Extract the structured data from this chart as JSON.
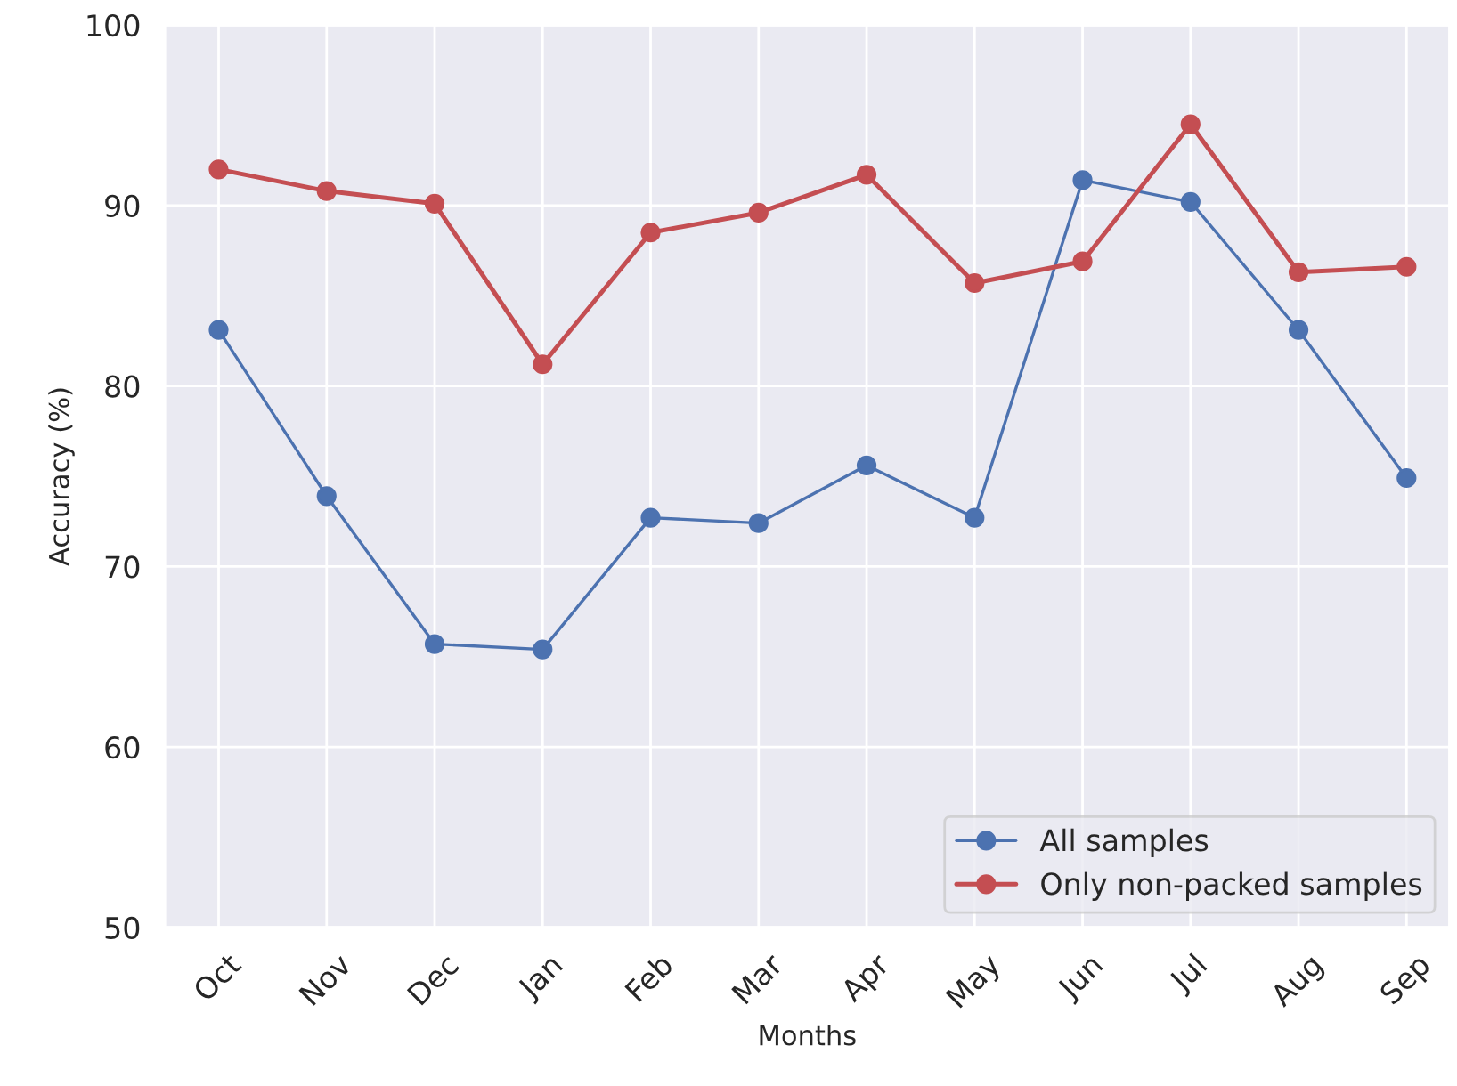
{
  "chart_data": {
    "type": "line",
    "xlabel": "Months",
    "ylabel": "Accuracy (%)",
    "categories": [
      "Oct",
      "Nov",
      "Dec",
      "Jan",
      "Feb",
      "Mar",
      "Apr",
      "May",
      "Jun",
      "Jul",
      "Aug",
      "Sep"
    ],
    "series": [
      {
        "name": "All samples",
        "color": "#4c72b0",
        "values": [
          83.1,
          73.9,
          65.7,
          65.4,
          72.7,
          72.4,
          75.6,
          72.7,
          91.4,
          90.2,
          83.1,
          74.9
        ]
      },
      {
        "name": "Only non-packed samples",
        "color": "#c44e52",
        "values": [
          92.0,
          90.8,
          90.1,
          81.2,
          88.5,
          89.6,
          91.7,
          85.7,
          86.9,
          94.5,
          86.3,
          86.6
        ]
      }
    ],
    "ylim": [
      50,
      100
    ],
    "yticks": [
      50,
      60,
      70,
      80,
      90,
      100
    ],
    "grid": true,
    "legend": "bottom right",
    "marker": "circle",
    "line_style": "solid"
  }
}
